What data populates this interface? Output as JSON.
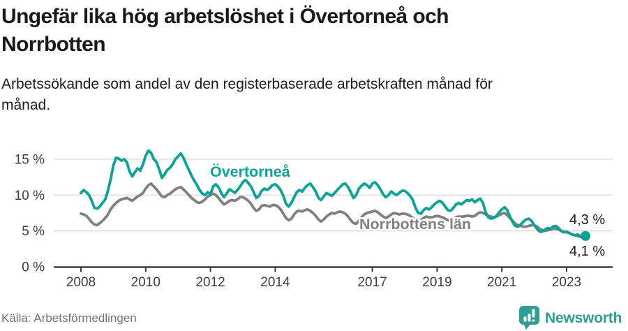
{
  "header": {
    "title_line1": "Ungefär lika hög arbetslöshet i Övertorneå och",
    "title_line2": "Norrbotten",
    "subtitle_line1": "Arbetssökande som andel av den registerbaserade arbetskraften månad för",
    "subtitle_line2": "månad."
  },
  "footer": {
    "source_text": "Källa: Arbetsförmedlingen",
    "logo_text": "Newsworthy"
  },
  "palette": {
    "accent_teal": "#0AA396",
    "line_gray": "#808080",
    "grid_gray": "#DADADA",
    "axis_dark": "#3C3C3C",
    "text_dark": "#1A1A1A",
    "source_gray": "#71717A",
    "logo_teal": "#2F9D94"
  },
  "chart_data": {
    "type": "line",
    "title": "Ungefär lika hög arbetslöshet i Övertorneå och Norrbotten",
    "subtitle": "Arbetssökande som andel av den registerbaserade arbetskraften månad för månad.",
    "unit": "%",
    "x_unit": "month",
    "x_start_year": 2008,
    "x_start_month": 1,
    "x_end": "2023-08",
    "ylim": [
      0,
      16.5
    ],
    "grid": true,
    "y_ticks": [
      {
        "value": 15,
        "label": "15 %"
      },
      {
        "value": 10,
        "label": "10 %"
      },
      {
        "value": 5,
        "label": "5 %"
      },
      {
        "value": 0,
        "label": "0 %"
      }
    ],
    "x_ticks": [
      {
        "year": 2008,
        "label": "2008"
      },
      {
        "year": 2010,
        "label": "2010"
      },
      {
        "year": 2012,
        "label": "2012"
      },
      {
        "year": 2014,
        "label": "2014"
      },
      {
        "year": 2017,
        "label": "2017"
      },
      {
        "year": 2019,
        "label": "2019"
      },
      {
        "year": 2021,
        "label": "2021"
      },
      {
        "year": 2023,
        "label": "2023"
      }
    ],
    "series": [
      {
        "name": "Övertorneå",
        "color": "#0AA396",
        "last_value_label": "4,3 %",
        "values": [
          10.3,
          10.7,
          10.4,
          10.0,
          9.2,
          8.2,
          8.1,
          8.4,
          8.9,
          9.4,
          10.6,
          12.2,
          14.1,
          15.2,
          15.1,
          14.8,
          15.0,
          14.6,
          13.3,
          12.6,
          13.2,
          13.7,
          13.4,
          14.3,
          15.5,
          16.2,
          15.9,
          15.0,
          14.6,
          13.6,
          12.4,
          12.9,
          13.5,
          13.8,
          14.3,
          15.0,
          15.4,
          15.8,
          15.2,
          14.3,
          13.5,
          12.7,
          12.0,
          11.4,
          10.7,
          10.2,
          10.0,
          10.4,
          10.1,
          11.2,
          11.5,
          11.1,
          10.3,
          9.7,
          10.2,
          10.8,
          10.6,
          10.3,
          10.7,
          11.2,
          11.8,
          12.1,
          11.7,
          11.2,
          10.4,
          9.6,
          9.9,
          10.6,
          10.9,
          10.7,
          11.0,
          11.4,
          11.5,
          11.2,
          10.7,
          9.9,
          8.8,
          8.4,
          8.9,
          9.7,
          10.4,
          10.7,
          10.5,
          11.0,
          11.4,
          11.6,
          11.1,
          10.5,
          9.6,
          9.3,
          9.8,
          10.3,
          10.1,
          9.9,
          10.3,
          10.7,
          11.1,
          11.5,
          11.6,
          11.1,
          10.4,
          9.6,
          10.0,
          10.9,
          11.3,
          11.6,
          11.4,
          11.0,
          11.6,
          11.8,
          11.4,
          10.8,
          10.1,
          9.7,
          10.0,
          10.5,
          10.2,
          10.0,
          10.3,
          10.6,
          10.6,
          10.3,
          9.9,
          9.3,
          8.2,
          7.5,
          7.4,
          7.9,
          8.2,
          8.0,
          8.3,
          8.7,
          9.0,
          9.2,
          8.9,
          8.4,
          7.9,
          7.8,
          8.2,
          8.7,
          8.9,
          8.7,
          9.0,
          9.3,
          9.2,
          9.4,
          9.0,
          9.3,
          9.5,
          8.9,
          7.6,
          6.9,
          6.7,
          6.8,
          7.1,
          7.6,
          8.0,
          8.3,
          7.9,
          7.0,
          6.2,
          5.7,
          5.6,
          5.9,
          6.3,
          6.6,
          6.7,
          6.4,
          5.8,
          5.3,
          4.9,
          4.9,
          5.2,
          5.4,
          5.3,
          5.6,
          5.7,
          5.4,
          5.0,
          4.8,
          4.9,
          4.7,
          4.5,
          4.4,
          4.5,
          4.3,
          4.2,
          4.3
        ]
      },
      {
        "name": "Norrbottens län",
        "color": "#808080",
        "last_value_label": "4,1 %",
        "values": [
          7.4,
          7.3,
          7.1,
          6.7,
          6.2,
          5.9,
          5.8,
          6.1,
          6.4,
          6.8,
          7.3,
          8.0,
          8.5,
          8.9,
          9.2,
          9.4,
          9.5,
          9.6,
          9.4,
          9.2,
          9.5,
          9.8,
          10.0,
          10.3,
          10.9,
          11.4,
          11.6,
          11.2,
          10.8,
          10.3,
          9.8,
          9.7,
          10.0,
          10.2,
          10.5,
          10.8,
          11.0,
          11.1,
          10.8,
          10.4,
          10.0,
          9.6,
          9.3,
          9.0,
          8.9,
          9.1,
          9.4,
          9.8,
          10.0,
          10.2,
          10.0,
          9.6,
          9.1,
          8.7,
          8.9,
          9.2,
          9.3,
          9.2,
          9.4,
          9.7,
          9.7,
          9.5,
          9.2,
          8.8,
          8.2,
          7.8,
          8.0,
          8.5,
          8.6,
          8.5,
          8.4,
          8.6,
          8.6,
          8.4,
          8.0,
          7.4,
          6.8,
          6.5,
          6.7,
          7.3,
          7.7,
          7.8,
          7.7,
          7.9,
          8.0,
          7.8,
          7.5,
          7.1,
          6.6,
          6.3,
          6.6,
          7.0,
          7.3,
          7.5,
          7.4,
          7.6,
          7.7,
          7.6,
          7.4,
          7.0,
          6.5,
          6.1,
          6.0,
          6.4,
          6.9,
          7.3,
          7.5,
          7.6,
          7.7,
          7.8,
          7.6,
          7.3,
          7.0,
          6.8,
          7.0,
          7.3,
          7.5,
          7.4,
          7.3,
          7.4,
          7.4,
          7.3,
          7.1,
          6.8,
          6.5,
          6.3,
          6.5,
          6.8,
          7.0,
          6.9,
          6.9,
          7.0,
          7.1,
          7.0,
          6.9,
          6.7,
          6.5,
          6.4,
          6.6,
          6.9,
          7.0,
          7.0,
          7.0,
          7.1,
          7.1,
          7.0,
          7.1,
          7.4,
          7.6,
          7.5,
          7.3,
          7.1,
          7.0,
          6.9,
          7.0,
          7.2,
          7.4,
          7.5,
          7.2,
          6.8,
          6.4,
          6.0,
          5.8,
          5.7,
          5.6,
          5.6,
          5.7,
          5.8,
          5.8,
          5.6,
          5.3,
          5.1,
          5.0,
          5.1,
          5.2,
          5.3,
          5.3,
          5.2,
          5.0,
          4.9,
          4.8,
          4.7,
          4.5,
          4.4,
          4.3,
          4.2,
          4.1,
          4.1
        ]
      }
    ],
    "legend_position": "inline-labels",
    "end_labels": [
      "4,3 %",
      "4,1 %"
    ]
  }
}
